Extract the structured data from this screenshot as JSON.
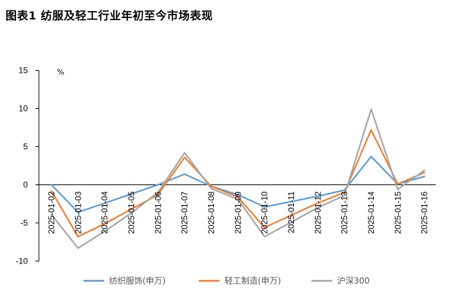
{
  "page": {
    "title": "图表1  纺服及轻工行业年初至今市场表现"
  },
  "chart_data": {
    "type": "line",
    "title": "图表1  纺服及轻工行业年初至今市场表现",
    "ylabel": "%",
    "xlabel": "",
    "ylim": [
      -10,
      15
    ],
    "yticks": [
      15,
      10,
      5,
      0,
      -5,
      -10
    ],
    "grid": false,
    "legend": "bottom",
    "categories": [
      "2025-01-02",
      "2025-01-03",
      "2025-01-04",
      "2025-01-05",
      "2025-01-06",
      "2025-01-07",
      "2025-01-08",
      "2025-01-09",
      "2025-01-10",
      "2025-01-11",
      "2025-01-12",
      "2025-01-13",
      "2025-01-14",
      "2025-01-15",
      "2025-01-16"
    ],
    "series": [
      {
        "name": "纺织服饰(申万)",
        "color": "#5b9bd5",
        "values": [
          0.0,
          -3.6,
          -2.4,
          -1.2,
          0.0,
          1.4,
          -0.2,
          -1.3,
          -2.9,
          -2.2,
          -1.5,
          -0.7,
          3.7,
          0.1,
          1.1
        ]
      },
      {
        "name": "轻工制造(申万)",
        "color": "#ed7d31",
        "values": [
          -0.8,
          -6.8,
          -5.1,
          -3.2,
          -1.3,
          3.6,
          -0.2,
          -1.6,
          -5.6,
          -4.0,
          -2.4,
          -1.0,
          7.2,
          0.1,
          1.6
        ]
      },
      {
        "name": "沪深300",
        "color": "#a5a5a5",
        "values": [
          -3.9,
          -8.3,
          -6.1,
          -3.7,
          -1.0,
          4.2,
          -0.5,
          -1.9,
          -6.8,
          -4.9,
          -3.0,
          -1.4,
          9.9,
          -0.6,
          1.9
        ]
      }
    ]
  }
}
